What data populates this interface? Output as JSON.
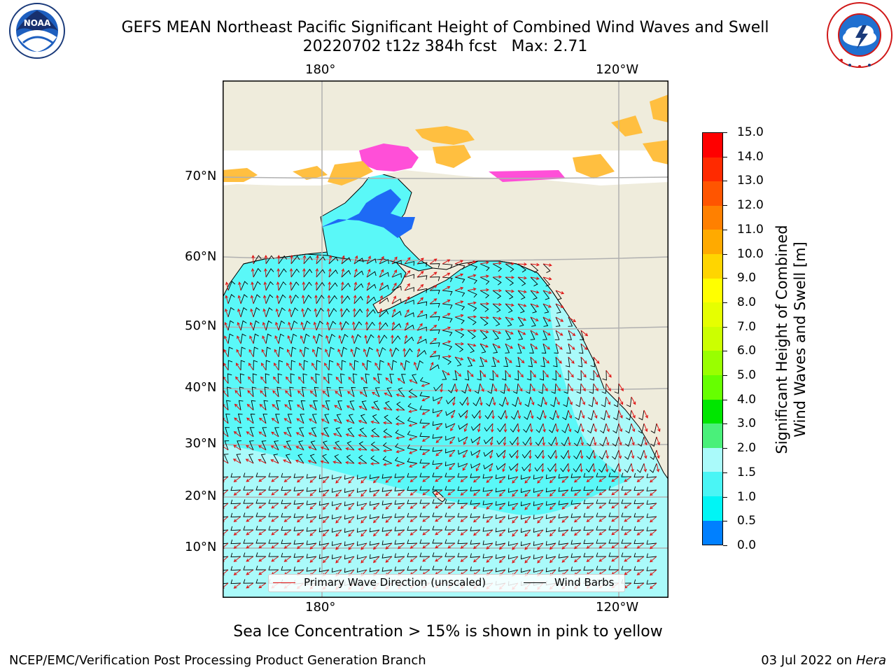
{
  "header": {
    "title_line1": "GEFS MEAN Northeast Pacific Significant Height of Combined Wind Waves and Swell",
    "title_line2": "20220702 t12z 384h fcst   Max: 2.71"
  },
  "logos": {
    "left": {
      "name": "noaa-logo",
      "text": "NOAA",
      "ring_text": "NATIONAL OCEANIC AND ATMOSPHERIC ADMINISTRATION · U.S. DEPARTMENT OF COMMERCE"
    },
    "right": {
      "name": "nws-logo",
      "ring_text": "NATIONAL WEATHER SERVICE"
    }
  },
  "map": {
    "lon_labels_top": [
      "180°",
      "120°W"
    ],
    "lon_labels_bottom": [
      "180°",
      "120°W"
    ],
    "lat_labels": [
      "70°N",
      "60°N",
      "50°N",
      "40°N",
      "30°N",
      "20°N",
      "10°N"
    ],
    "colors": {
      "ocean": "#5af8f8",
      "land": "#efecdc",
      "grid": "#b0b0b0",
      "ice": "#ffbf40"
    }
  },
  "legend": {
    "items": [
      {
        "label": "Primary Wave Direction (unscaled)",
        "color": "#e01010"
      },
      {
        "label": "Wind Barbs",
        "color": "#000000"
      }
    ]
  },
  "colorbar": {
    "title": "Significant Height of Combined\nWind Waves and Swell [m]",
    "ticks": [
      "15.0",
      "14.0",
      "13.0",
      "12.0",
      "11.0",
      "10.0",
      "9.0",
      "8.0",
      "7.0",
      "6.0",
      "5.0",
      "4.0",
      "3.0",
      "2.0",
      "1.5",
      "1.0",
      "0.5",
      "0.0"
    ],
    "colors": [
      "#ff0000",
      "#ff2a00",
      "#ff5500",
      "#ff8000",
      "#ffaa00",
      "#ffd500",
      "#ffff00",
      "#e6ff00",
      "#ccff00",
      "#99ff00",
      "#66ff00",
      "#00e600",
      "#4af07a",
      "#aafafa",
      "#4af5f5",
      "#00f5f5",
      "#0080ff",
      "#0000ff"
    ]
  },
  "caption": "Sea Ice Concentration > 15% is shown in pink to yellow",
  "footer": {
    "left": "NCEP/EMC/Verification Post Processing Product Generation Branch",
    "right_date": "03 Jul 2022 on ",
    "right_host": "Hera"
  }
}
